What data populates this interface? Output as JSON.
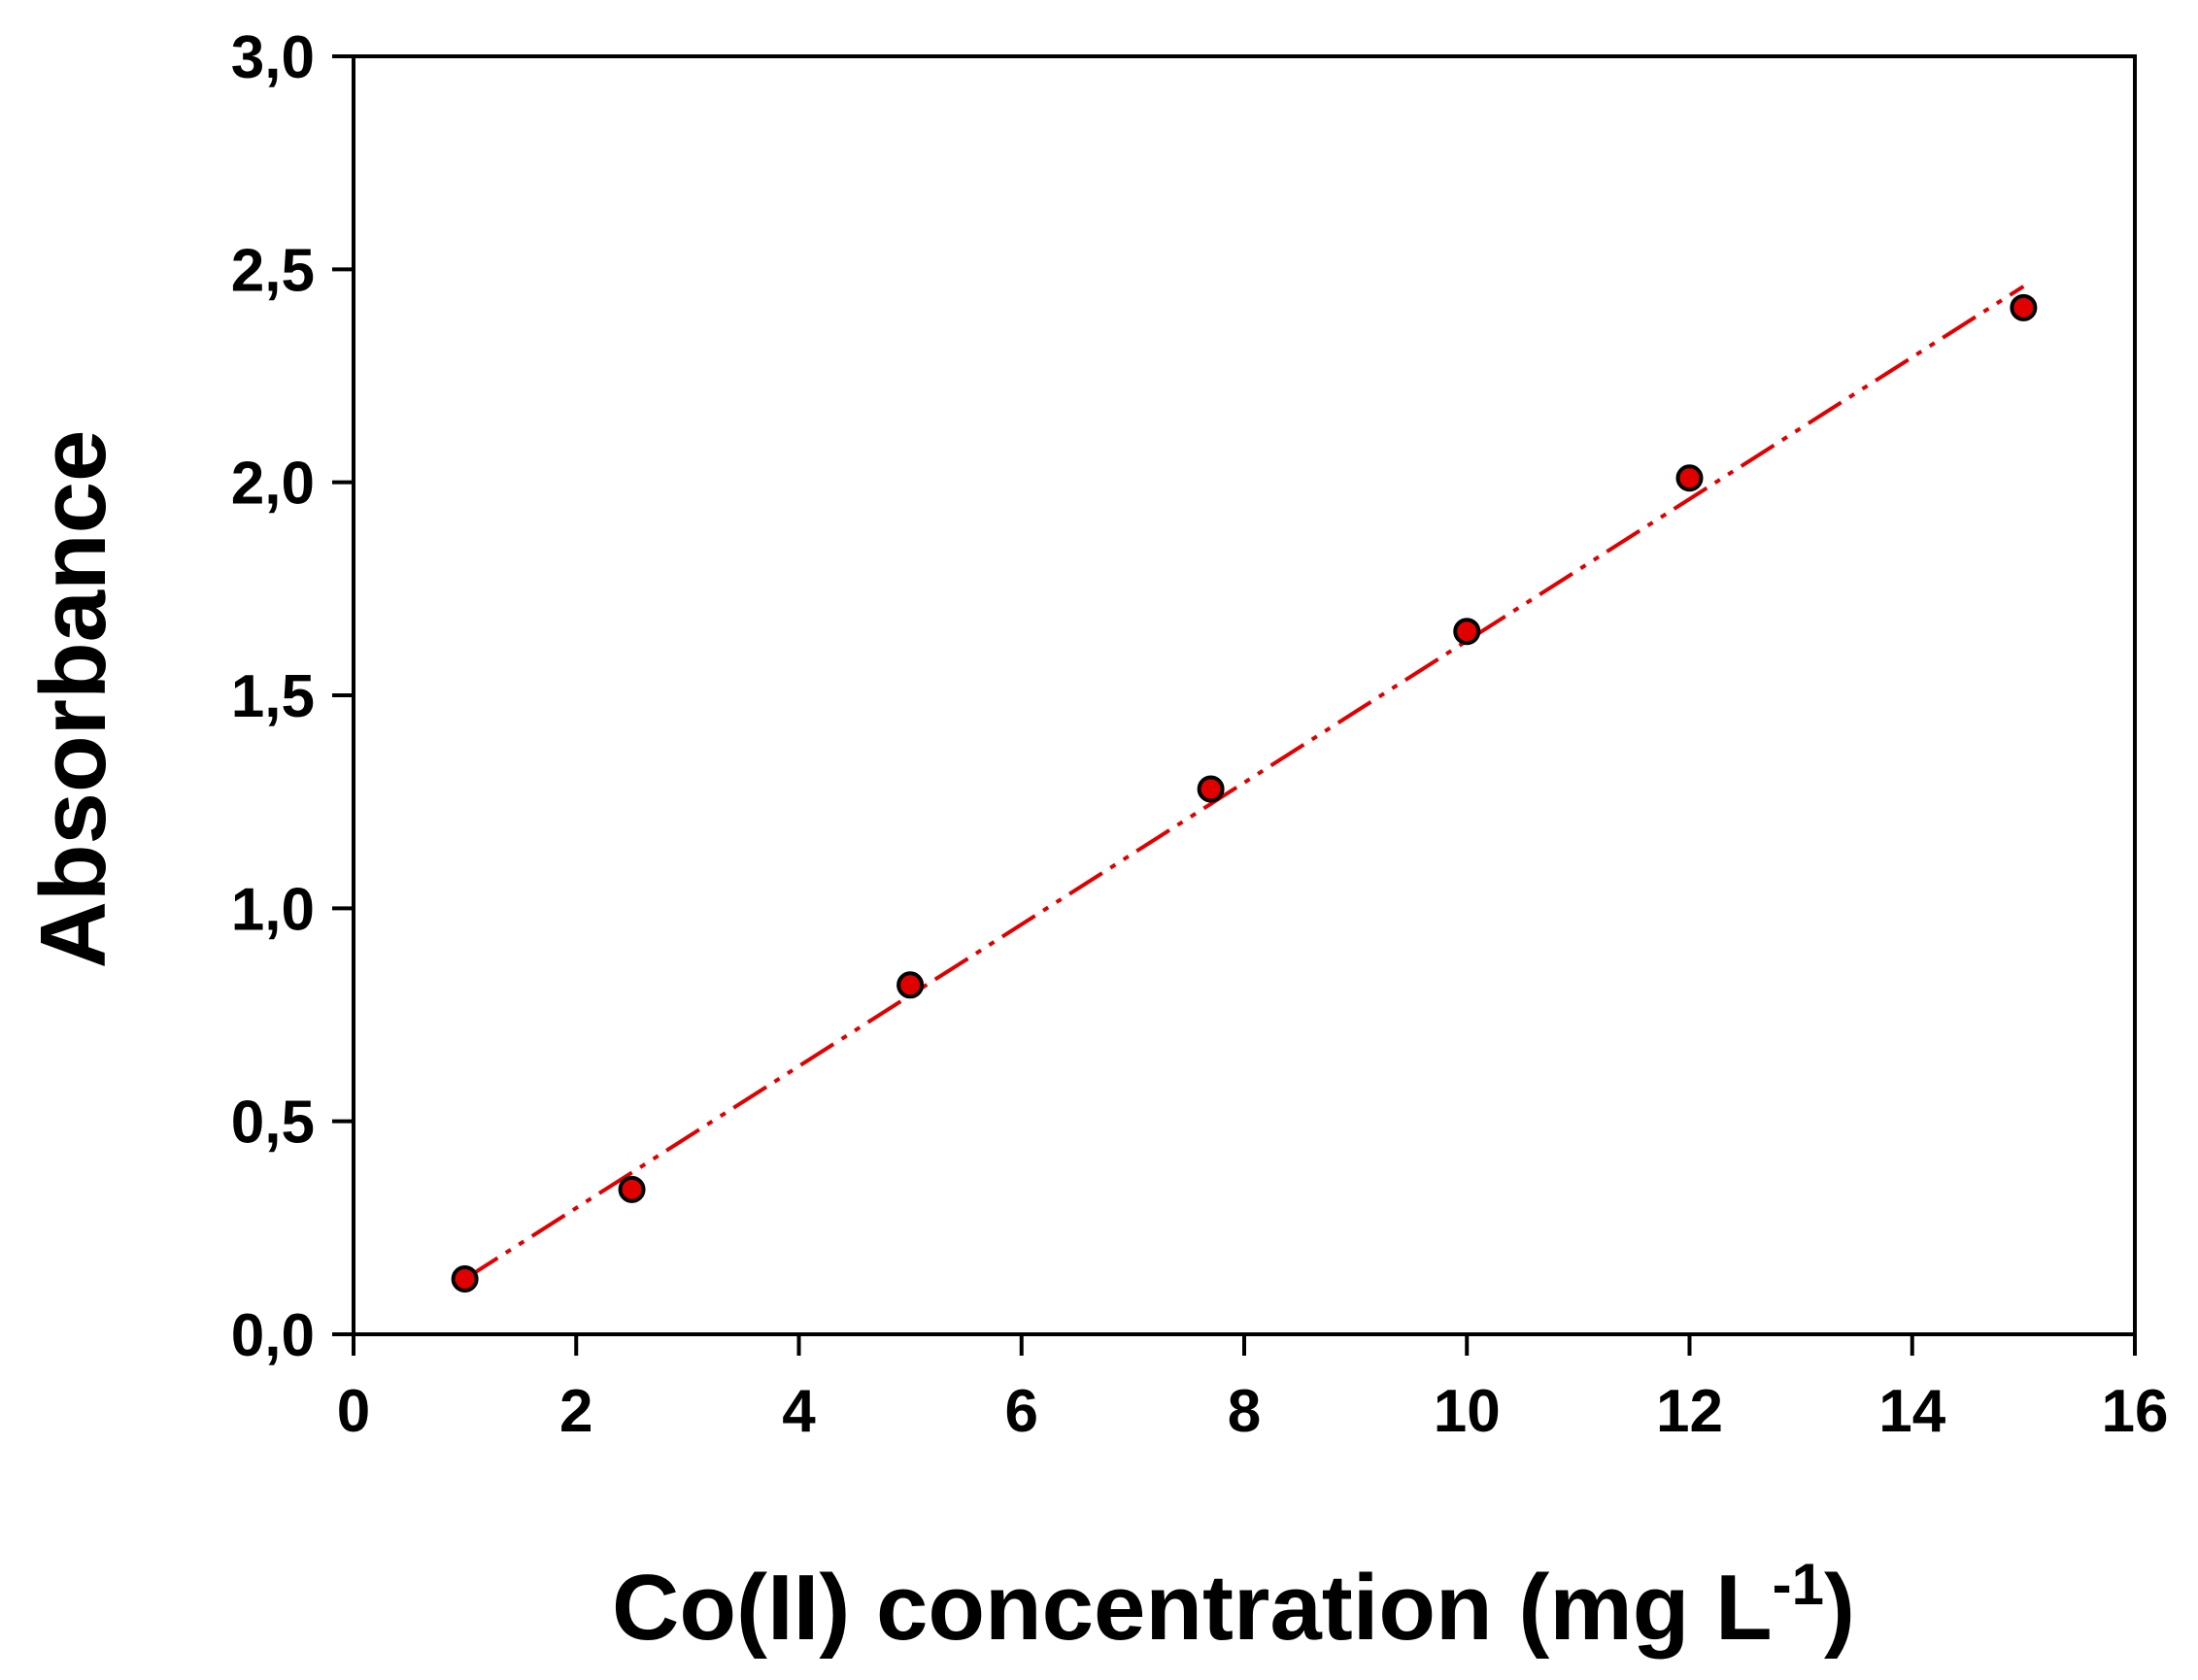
{
  "chart_data": {
    "type": "scatter",
    "xlabel": "Co(II) concentration (mg L",
    "xlabel_superscript": "-1",
    "xlabel_suffix": ")",
    "ylabel": "Absorbance",
    "xlim": [
      0,
      16
    ],
    "ylim": [
      0,
      3
    ],
    "x_ticks": [
      0,
      2,
      4,
      6,
      8,
      10,
      12,
      14,
      16
    ],
    "x_tick_labels": [
      "0",
      "2",
      "4",
      "6",
      "8",
      "10",
      "12",
      "14",
      "16"
    ],
    "y_ticks": [
      0,
      0.5,
      1,
      1.5,
      2,
      2.5,
      3
    ],
    "y_tick_labels": [
      "0,0",
      "0,5",
      "1,0",
      "1,5",
      "2,0",
      "2,5",
      "3,0"
    ],
    "grid": false,
    "series": [
      {
        "x": [
          1,
          2.5,
          5,
          7.7,
          10,
          12,
          15
        ],
        "y": [
          0.13,
          0.34,
          0.82,
          1.28,
          1.65,
          2.01,
          2.41
        ],
        "marker_color": "#e00000",
        "marker_edge": "#000000"
      }
    ],
    "fit_line": {
      "x": [
        1,
        15
      ],
      "y": [
        0.13,
        2.46
      ],
      "style": "dash-dot-dot",
      "color": "#e00000"
    }
  }
}
